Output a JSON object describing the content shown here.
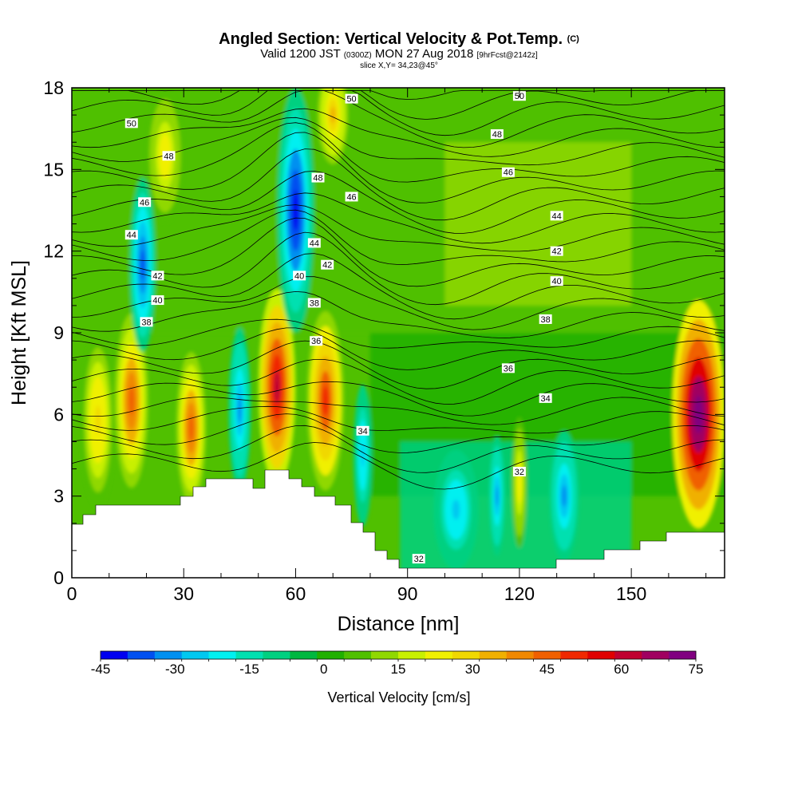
{
  "header": {
    "title": "Angled Section: Vertical Velocity & Pot.Temp.",
    "title_mark": "(C)",
    "valid_prefix": "Valid 1200 JST",
    "valid_utc": "(0300Z)",
    "valid_date": "MON 27 Aug 2018",
    "valid_fcst": "[9hrFcst@2142z]",
    "slice": "slice X,Y= 34,23@45°"
  },
  "colorbar": {
    "label": "Vertical Velocity [cm/s]",
    "tick_labels": [
      "-45",
      "-30",
      "-15",
      "0",
      "15",
      "30",
      "45",
      "60",
      "75"
    ],
    "colors": [
      "#0000f0",
      "#0050f0",
      "#0090f0",
      "#00c8f0",
      "#00f0f0",
      "#00e0b0",
      "#00d080",
      "#00b840",
      "#20b000",
      "#50c000",
      "#90d800",
      "#c8f000",
      "#f0f000",
      "#f0d800",
      "#f0b000",
      "#f08800",
      "#f06000",
      "#f02800",
      "#e00000",
      "#c00030",
      "#a00060",
      "#800080"
    ]
  },
  "chart_data": {
    "type": "heatmap",
    "title": "Angled Section: Vertical Velocity & Pot.Temp.",
    "xlabel": "Distance [nm]",
    "ylabel": "Height [Kft MSL]",
    "xlim": [
      0,
      175
    ],
    "ylim": [
      0,
      18
    ],
    "x_ticks": [
      0,
      30,
      60,
      90,
      120,
      150
    ],
    "x_tick_labels": [
      "0",
      "30",
      "60",
      "90",
      "120",
      "150"
    ],
    "y_ticks": [
      0,
      3,
      6,
      9,
      12,
      15,
      18
    ],
    "y_tick_labels": [
      "0",
      "3",
      "6",
      "9",
      "12",
      "15",
      "18"
    ],
    "fill_variable": "Vertical Velocity [cm/s]",
    "fill_range": [
      -45,
      75
    ],
    "contour_variable": "Pot.Temp.",
    "contour_levels": [
      32,
      34,
      36,
      38,
      40,
      42,
      44,
      46,
      48,
      50
    ],
    "contour_labels": [
      {
        "text": "50",
        "x": 16,
        "y": 16.7
      },
      {
        "text": "48",
        "x": 26,
        "y": 15.5
      },
      {
        "text": "46",
        "x": 19.5,
        "y": 13.8
      },
      {
        "text": "44",
        "x": 16,
        "y": 12.6
      },
      {
        "text": "42",
        "x": 23,
        "y": 11.1
      },
      {
        "text": "40",
        "x": 23,
        "y": 10.2
      },
      {
        "text": "38",
        "x": 20,
        "y": 9.4
      },
      {
        "text": "50",
        "x": 75,
        "y": 17.6
      },
      {
        "text": "48",
        "x": 66,
        "y": 14.7
      },
      {
        "text": "46",
        "x": 75,
        "y": 14.0
      },
      {
        "text": "44",
        "x": 65,
        "y": 12.3
      },
      {
        "text": "42",
        "x": 68.5,
        "y": 11.5
      },
      {
        "text": "40",
        "x": 61,
        "y": 11.1
      },
      {
        "text": "38",
        "x": 65,
        "y": 10.1
      },
      {
        "text": "36",
        "x": 65.5,
        "y": 8.7
      },
      {
        "text": "34",
        "x": 78,
        "y": 5.4
      },
      {
        "text": "32",
        "x": 93,
        "y": 0.7
      },
      {
        "text": "32",
        "x": 120,
        "y": 3.9
      },
      {
        "text": "50",
        "x": 120,
        "y": 17.7
      },
      {
        "text": "48",
        "x": 114,
        "y": 16.3
      },
      {
        "text": "46",
        "x": 117,
        "y": 14.9
      },
      {
        "text": "44",
        "x": 130,
        "y": 13.3
      },
      {
        "text": "42",
        "x": 130,
        "y": 12.0
      },
      {
        "text": "40",
        "x": 130,
        "y": 10.9
      },
      {
        "text": "38",
        "x": 127,
        "y": 9.5
      },
      {
        "text": "36",
        "x": 117,
        "y": 7.7
      },
      {
        "text": "34",
        "x": 127,
        "y": 6.6
      }
    ],
    "cells": [
      {
        "x": 7,
        "y": 5.8,
        "v": 30
      },
      {
        "x": 16,
        "y": 6.5,
        "v": 45
      },
      {
        "x": 32,
        "y": 5.5,
        "v": 45
      },
      {
        "x": 45,
        "y": 6.2,
        "v": -30
      },
      {
        "x": 55,
        "y": 7.0,
        "v": 60
      },
      {
        "x": 68,
        "y": 6.5,
        "v": 50
      },
      {
        "x": 78,
        "y": 4.5,
        "v": -25
      },
      {
        "x": 103,
        "y": 2.5,
        "v": -25
      },
      {
        "x": 114,
        "y": 3.0,
        "v": -30
      },
      {
        "x": 120,
        "y": 3.5,
        "v": 25
      },
      {
        "x": 132,
        "y": 3.0,
        "v": -30
      },
      {
        "x": 168,
        "y": 6.0,
        "v": 75
      },
      {
        "x": 19,
        "y": 11.5,
        "v": -35
      },
      {
        "x": 60,
        "y": 13.5,
        "v": -40
      },
      {
        "x": 25,
        "y": 15.5,
        "v": 25
      },
      {
        "x": 70,
        "y": 17.0,
        "v": 35
      }
    ]
  }
}
